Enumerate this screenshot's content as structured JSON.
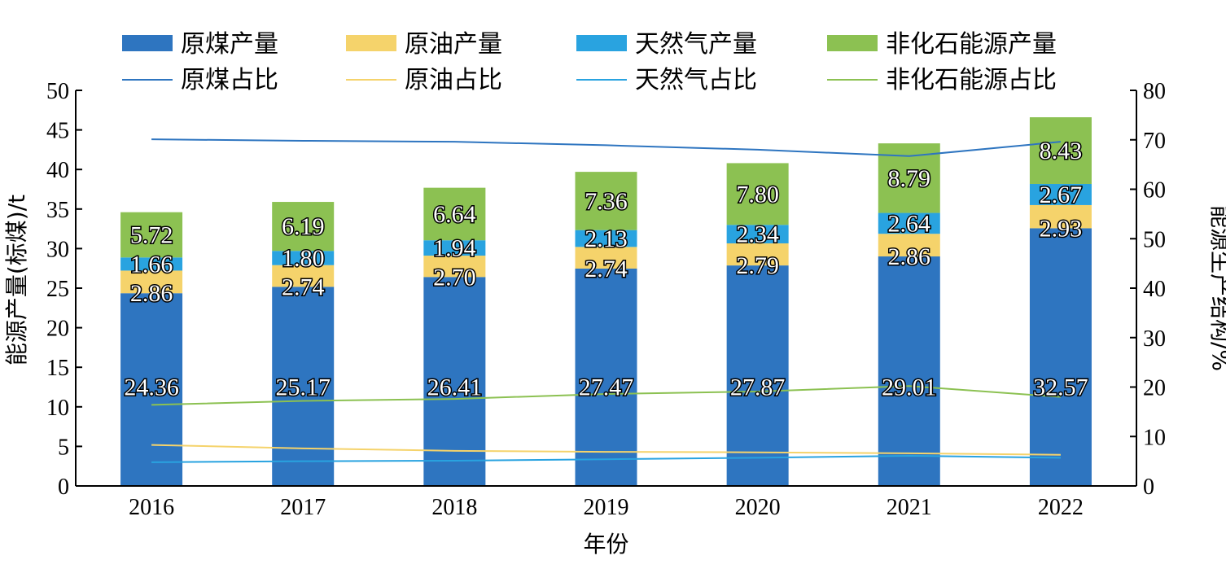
{
  "chart_data": {
    "type": "bar",
    "subtype": "stacked-bar-with-lines",
    "categories": [
      "2016",
      "2017",
      "2018",
      "2019",
      "2020",
      "2021",
      "2022"
    ],
    "xlabel": "年份",
    "ylabel_left": "能源产量(标煤)/t",
    "ylabel_right": "能源生产结构/%",
    "ylim_left": [
      0,
      50
    ],
    "yticks_left": [
      "0",
      "5",
      "10",
      "15",
      "20",
      "25",
      "30",
      "35",
      "40",
      "45",
      "50"
    ],
    "ylim_right": [
      0,
      80
    ],
    "yticks_right": [
      "0",
      "10",
      "20",
      "30",
      "40",
      "50",
      "60",
      "70",
      "80"
    ],
    "grid": false,
    "legend_position": "top",
    "bar_series": [
      {
        "name": "原煤产量",
        "color": "#2e75c0",
        "values": [
          24.36,
          25.17,
          26.41,
          27.47,
          27.87,
          29.01,
          32.57
        ],
        "labels": [
          "24.36",
          "25.17",
          "26.41",
          "27.47",
          "27.87",
          "29.01",
          "32.57"
        ]
      },
      {
        "name": "原油产量",
        "color": "#f5d36b",
        "values": [
          2.86,
          2.74,
          2.7,
          2.74,
          2.79,
          2.86,
          2.93
        ],
        "labels": [
          "2.86",
          "2.74",
          "2.70",
          "2.74",
          "2.79",
          "2.86",
          "2.93"
        ]
      },
      {
        "name": "天然气产量",
        "color": "#29a3e0",
        "values": [
          1.66,
          1.8,
          1.94,
          2.13,
          2.34,
          2.64,
          2.67
        ],
        "labels": [
          "1.66",
          "1.80",
          "1.94",
          "2.13",
          "2.34",
          "2.64",
          "2.67"
        ]
      },
      {
        "name": "非化石能源产量",
        "color": "#8cc152",
        "values": [
          5.72,
          6.19,
          6.64,
          7.36,
          7.8,
          8.79,
          8.43
        ],
        "labels": [
          "5.72",
          "6.19",
          "6.64",
          "7.36",
          "7.80",
          "8.79",
          "8.43"
        ]
      }
    ],
    "line_series": [
      {
        "name": "原煤占比",
        "color": "#2e75c0",
        "values": [
          70.1,
          69.8,
          69.6,
          68.9,
          68.0,
          66.7,
          69.6
        ]
      },
      {
        "name": "原油占比",
        "color": "#f5d36b",
        "values": [
          8.3,
          7.6,
          7.1,
          6.9,
          6.8,
          6.6,
          6.3
        ]
      },
      {
        "name": "天然气占比",
        "color": "#29a3e0",
        "values": [
          4.8,
          5.0,
          5.1,
          5.4,
          5.7,
          6.1,
          5.7
        ]
      },
      {
        "name": "非化石能源占比",
        "color": "#8cc152",
        "values": [
          16.4,
          17.2,
          17.6,
          18.6,
          19.1,
          20.2,
          18.0
        ]
      }
    ]
  }
}
